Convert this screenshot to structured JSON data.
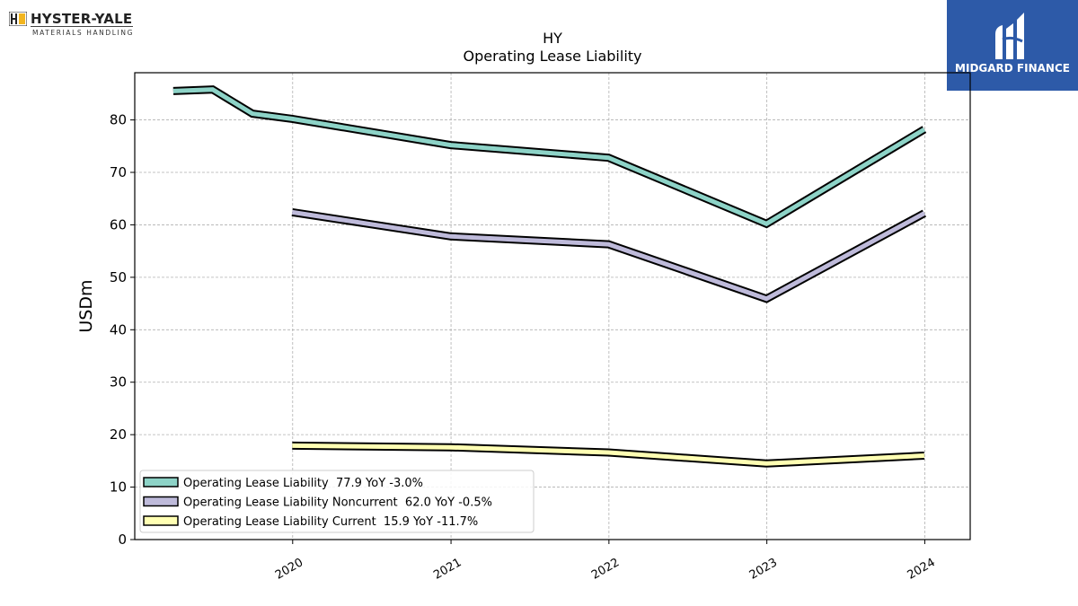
{
  "logos": {
    "left": {
      "name": "HYSTER-YALE",
      "subtitle": "MATERIALS HANDLING"
    },
    "right": {
      "name": "MIDGARD FINANCE"
    }
  },
  "chart_data": {
    "type": "line",
    "title": "HY",
    "subtitle": "Operating Lease Liability",
    "ylabel": "USDm",
    "xlabel": "",
    "ylim": [
      0,
      89
    ],
    "yticks": [
      0,
      10,
      20,
      30,
      40,
      50,
      60,
      70,
      80
    ],
    "xlim": [
      "2019-01-01",
      "2024-04-15"
    ],
    "xticks": [
      "2020",
      "2021",
      "2022",
      "2023",
      "2024"
    ],
    "grid": true,
    "legend_position": "lower-left",
    "series": [
      {
        "name": "Operating Lease Liability  77.9 YoY -3.0%",
        "color": "#8dd3c7",
        "points": [
          [
            "2019-03-31",
            85.5
          ],
          [
            "2019-06-30",
            85.8
          ],
          [
            "2019-09-30",
            81.2
          ],
          [
            "2019-12-31",
            80.2
          ],
          [
            "2020-12-31",
            75.2
          ],
          [
            "2021-12-31",
            72.8
          ],
          [
            "2022-12-31",
            60.2
          ],
          [
            "2023-12-31",
            78.2
          ]
        ]
      },
      {
        "name": "Operating Lease Liability Noncurrent  62.0 YoY -0.5%",
        "color": "#bebada",
        "points": [
          [
            "2019-12-31",
            62.4
          ],
          [
            "2020-12-31",
            57.8
          ],
          [
            "2021-12-31",
            56.3
          ],
          [
            "2022-12-31",
            45.9
          ],
          [
            "2023-12-31",
            62.2
          ]
        ]
      },
      {
        "name": "Operating Lease Liability Current  15.9 YoY -11.7%",
        "color": "#ffffb3",
        "points": [
          [
            "2019-12-31",
            17.9
          ],
          [
            "2020-12-31",
            17.6
          ],
          [
            "2021-12-31",
            16.6
          ],
          [
            "2022-12-31",
            14.5
          ],
          [
            "2023-12-31",
            16.0
          ]
        ]
      }
    ]
  }
}
